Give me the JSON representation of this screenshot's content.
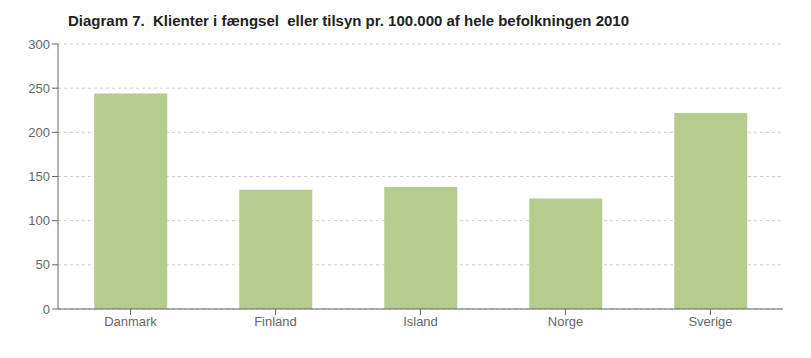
{
  "chart_data": {
    "type": "bar",
    "title": "Diagram 7.  Klienter i fængsel  eller tilsyn pr. 100.000 af hele befolkningen 2010",
    "categories": [
      "Danmark",
      "Finland",
      "Island",
      "Norge",
      "Sverige"
    ],
    "values": [
      244,
      135,
      138,
      125,
      222
    ],
    "color": "#b5cc8e",
    "ylim": [
      0,
      300
    ],
    "yticks": [
      0,
      50,
      100,
      150,
      200,
      250,
      300
    ],
    "grid": true
  }
}
